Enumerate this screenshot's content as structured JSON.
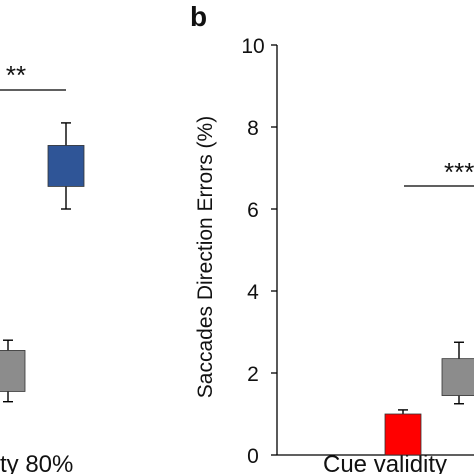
{
  "panel_b_label": "b",
  "chart_data": [
    {
      "panel": "a (cropped)",
      "type": "bar",
      "xlabel": "ty 80%",
      "significance": "**",
      "ylim": [
        0,
        10
      ],
      "series": [
        {
          "name": "",
          "color": "#8c8c8c",
          "value": 2.0,
          "err_low": 1.3,
          "err_high": 2.8
        },
        {
          "name": "",
          "color": "#2f5597",
          "value": 7.1,
          "err_low": 6.0,
          "err_high": 8.1
        }
      ]
    },
    {
      "panel": "b",
      "type": "bar",
      "ylabel": "Saccades Direction Errors (%)",
      "xlabel": "Cue validity",
      "yticks": [
        "0",
        "2",
        "4",
        "6",
        "8",
        "10"
      ],
      "ylim": [
        0,
        10
      ],
      "significance": "***",
      "series": [
        {
          "name": "",
          "color": "#ff0000",
          "value": 1.0,
          "err_low": 0.9,
          "err_high": 1.1
        },
        {
          "name": "",
          "color": "#8c8c8c",
          "value": 2.0,
          "err_low": 1.25,
          "err_high": 2.75
        }
      ]
    }
  ]
}
